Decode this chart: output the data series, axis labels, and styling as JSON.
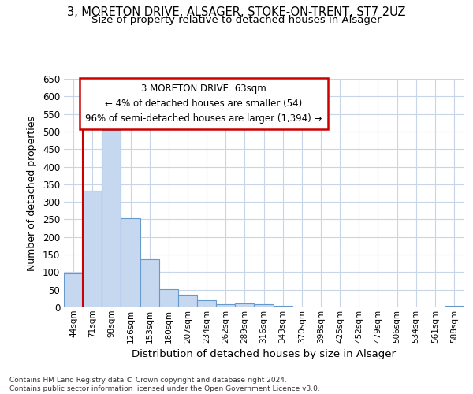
{
  "title_line1": "3, MORETON DRIVE, ALSAGER, STOKE-ON-TRENT, ST7 2UZ",
  "title_line2": "Size of property relative to detached houses in Alsager",
  "xlabel": "Distribution of detached houses by size in Alsager",
  "ylabel": "Number of detached properties",
  "categories": [
    "44sqm",
    "71sqm",
    "98sqm",
    "126sqm",
    "153sqm",
    "180sqm",
    "207sqm",
    "234sqm",
    "262sqm",
    "289sqm",
    "316sqm",
    "343sqm",
    "370sqm",
    "398sqm",
    "425sqm",
    "452sqm",
    "479sqm",
    "506sqm",
    "534sqm",
    "561sqm",
    "588sqm"
  ],
  "values": [
    96,
    332,
    504,
    253,
    137,
    52,
    36,
    21,
    10,
    12,
    10,
    5,
    0,
    0,
    0,
    0,
    0,
    0,
    0,
    0,
    5
  ],
  "bar_color": "#c5d8f0",
  "bar_edge_color": "#6699cc",
  "vline_color": "#cc0000",
  "annotation_text": "3 MORETON DRIVE: 63sqm\n← 4% of detached houses are smaller (54)\n96% of semi-detached houses are larger (1,394) →",
  "annotation_box_color": "#ffffff",
  "annotation_border_color": "#cc0000",
  "ylim": [
    0,
    650
  ],
  "yticks": [
    0,
    50,
    100,
    150,
    200,
    250,
    300,
    350,
    400,
    450,
    500,
    550,
    600,
    650
  ],
  "grid_color": "#c8d4e8",
  "footer_text": "Contains HM Land Registry data © Crown copyright and database right 2024.\nContains public sector information licensed under the Open Government Licence v3.0.",
  "bg_color": "#ffffff",
  "plot_bg_color": "#ffffff"
}
